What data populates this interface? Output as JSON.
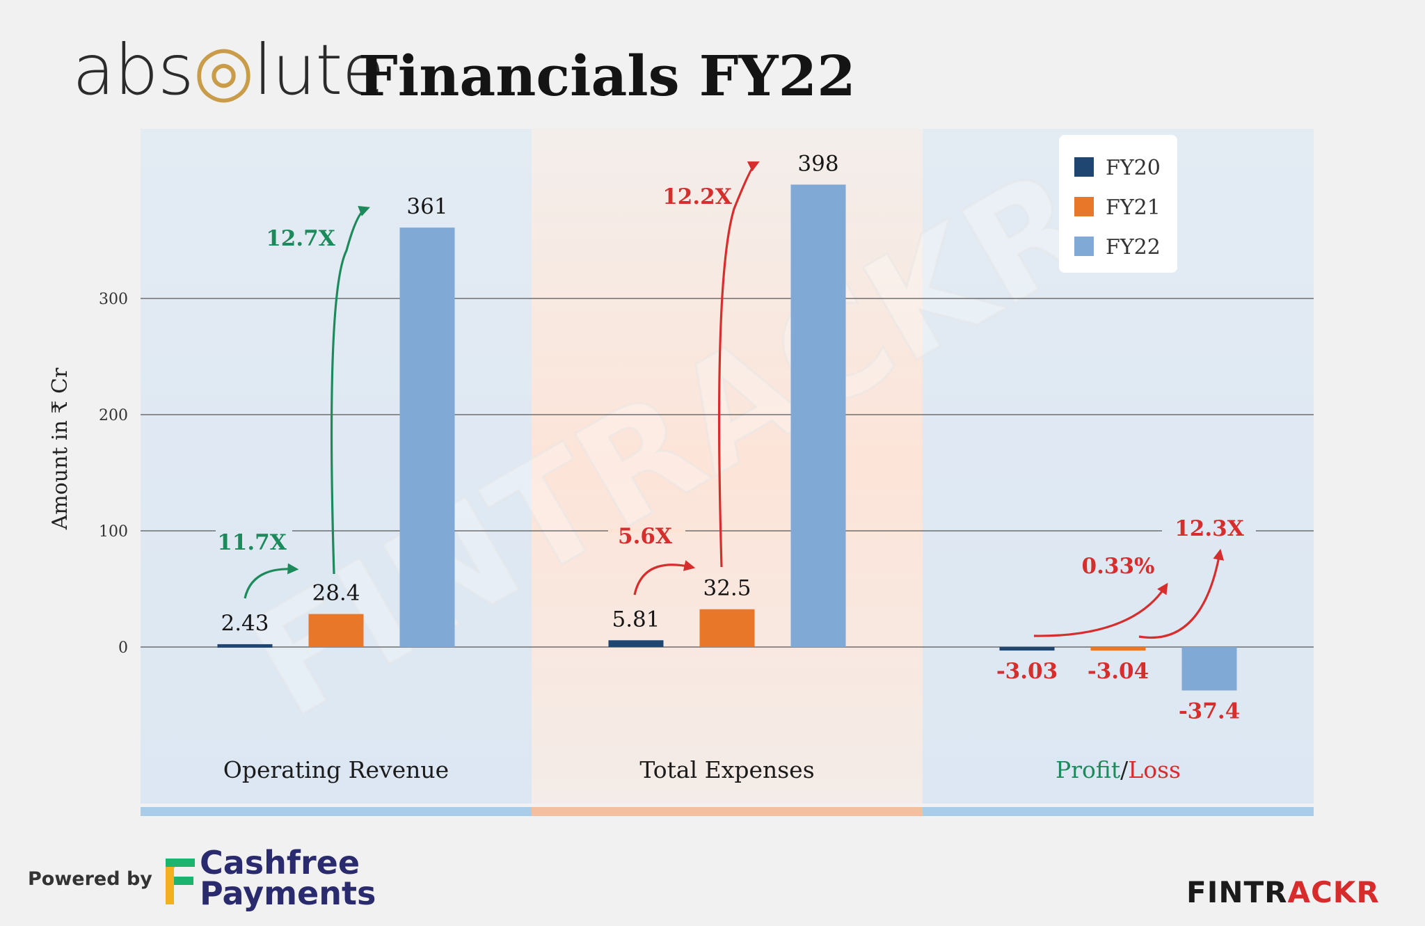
{
  "header": {
    "logo_text_before": "abs",
    "logo_text_after": "lute",
    "title": "Financials FY22"
  },
  "footer": {
    "powered_by": "Powered by",
    "partner_line1": "Cashfree",
    "partner_line2": "Payments",
    "brand_part1": "FINTR",
    "brand_part2": "ACKR"
  },
  "watermark": "FINTRACKR",
  "colors": {
    "FY20": "#1f4571",
    "FY21": "#e8772a",
    "FY22": "#80a9d5",
    "growth_green": "#1c8a5a",
    "growth_red": "#d62d2d",
    "panel_blue": "#dde8f3",
    "panel_peach": "#fbe7dd"
  },
  "chart_data": {
    "type": "bar",
    "ylabel": "Amount in ₹ Cr",
    "yticks": [
      0,
      100,
      200,
      300
    ],
    "ylim": [
      -90,
      445
    ],
    "categories": [
      "Operating Revenue",
      "Total Expenses",
      "Profit/Loss"
    ],
    "category_label_parts": {
      "profit": "Profit",
      "separator": "/",
      "loss": "Loss"
    },
    "series": [
      {
        "name": "FY20",
        "values": [
          2.43,
          5.81,
          -3.03
        ]
      },
      {
        "name": "FY21",
        "values": [
          28.4,
          32.5,
          -3.04
        ]
      },
      {
        "name": "FY22",
        "values": [
          361,
          398,
          -37.4
        ]
      }
    ],
    "value_labels": [
      [
        "2.43",
        "28.4",
        "361"
      ],
      [
        "5.81",
        "32.5",
        "398"
      ],
      [
        "-3.03",
        "-3.04",
        "-37.4"
      ]
    ],
    "growth_annotations": [
      {
        "category": 0,
        "from": "FY20",
        "to": "FY21",
        "label": "11.7X",
        "color": "green"
      },
      {
        "category": 0,
        "from": "FY21",
        "to": "FY22",
        "label": "12.7X",
        "color": "green"
      },
      {
        "category": 1,
        "from": "FY20",
        "to": "FY21",
        "label": "5.6X",
        "color": "red"
      },
      {
        "category": 1,
        "from": "FY21",
        "to": "FY22",
        "label": "12.2X",
        "color": "red"
      },
      {
        "category": 2,
        "from": "FY20",
        "to": "FY21",
        "label": "0.33%",
        "color": "red"
      },
      {
        "category": 2,
        "from": "FY21",
        "to": "FY22",
        "label": "12.3X",
        "color": "red"
      }
    ],
    "legend": [
      "FY20",
      "FY21",
      "FY22"
    ],
    "legend_position": "top-right",
    "grid": true
  }
}
